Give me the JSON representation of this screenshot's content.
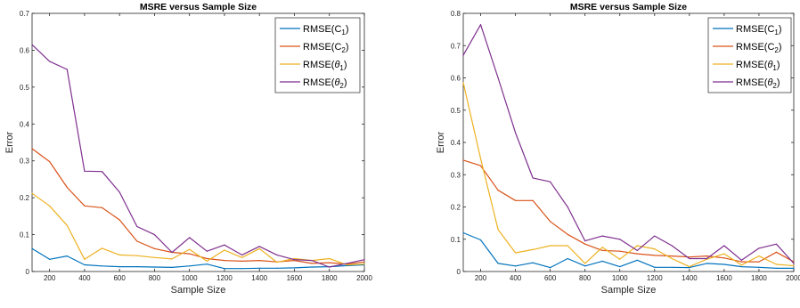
{
  "chart_data": [
    {
      "type": "line",
      "title": "MSRE versus Sample Size",
      "xlabel": "Sample Size",
      "ylabel": "Error",
      "xlim": [
        100,
        2000
      ],
      "ylim": [
        0,
        0.7
      ],
      "xticks": [
        "200",
        "400",
        "600",
        "800",
        "1000",
        "1200",
        "1400",
        "1600",
        "1800",
        "2000"
      ],
      "yticks": [
        "0",
        "0.1",
        "0.2",
        "0.3",
        "0.4",
        "0.5",
        "0.6",
        "0.7"
      ],
      "legend_position": "top-right",
      "x": [
        100,
        200,
        300,
        400,
        500,
        600,
        700,
        800,
        900,
        1000,
        1100,
        1200,
        1300,
        1400,
        1500,
        1600,
        1700,
        1800,
        1900,
        2000
      ],
      "series": [
        {
          "name": "RMSE(C1)",
          "label_base": "RMSE(C",
          "label_sub": "1",
          "label_italic": false,
          "color": "#0072BD",
          "values": [
            0.062,
            0.033,
            0.042,
            0.018,
            0.015,
            0.013,
            0.013,
            0.012,
            0.011,
            0.015,
            0.02,
            0.008,
            0.008,
            0.009,
            0.009,
            0.01,
            0.012,
            0.013,
            0.016,
            0.018
          ]
        },
        {
          "name": "RMSE(C2)",
          "label_base": "RMSE(C",
          "label_sub": "2",
          "label_italic": false,
          "color": "#D95319",
          "values": [
            0.333,
            0.298,
            0.228,
            0.178,
            0.173,
            0.14,
            0.082,
            0.062,
            0.052,
            0.048,
            0.035,
            0.03,
            0.028,
            0.03,
            0.026,
            0.03,
            0.022,
            0.024,
            0.02,
            0.026
          ]
        },
        {
          "name": "RMSE(θ1)",
          "label_base": "RMSE(",
          "label_greek": "θ",
          "label_sub": "1",
          "label_italic": true,
          "color": "#EDB120",
          "values": [
            0.212,
            0.178,
            0.125,
            0.033,
            0.063,
            0.045,
            0.043,
            0.038,
            0.034,
            0.06,
            0.028,
            0.058,
            0.038,
            0.062,
            0.025,
            0.035,
            0.03,
            0.035,
            0.018,
            0.02
          ]
        },
        {
          "name": "RMSE(θ2)",
          "label_base": "RMSE(",
          "label_greek": "θ",
          "label_sub": "2",
          "label_italic": true,
          "color": "#7E2F8E",
          "values": [
            0.615,
            0.57,
            0.548,
            0.272,
            0.271,
            0.215,
            0.122,
            0.1,
            0.052,
            0.092,
            0.055,
            0.072,
            0.045,
            0.068,
            0.045,
            0.032,
            0.03,
            0.012,
            0.022,
            0.032
          ]
        }
      ]
    },
    {
      "type": "line",
      "title": "MSRE versus Sample Size",
      "xlabel": "Sample Size",
      "ylabel": "Error",
      "xlim": [
        100,
        2000
      ],
      "ylim": [
        0,
        0.8
      ],
      "xticks": [
        "200",
        "400",
        "600",
        "800",
        "1000",
        "1200",
        "1400",
        "1600",
        "1800",
        "2000"
      ],
      "yticks": [
        "0",
        "0.1",
        "0.2",
        "0.3",
        "0.4",
        "0.5",
        "0.6",
        "0.7",
        "0.8"
      ],
      "legend_position": "top-right",
      "x": [
        100,
        200,
        300,
        400,
        500,
        600,
        700,
        800,
        900,
        1000,
        1100,
        1200,
        1300,
        1400,
        1500,
        1600,
        1700,
        1800,
        1900,
        2000
      ],
      "series": [
        {
          "name": "RMSE(C1)",
          "label_base": "RMSE(C",
          "label_sub": "1",
          "label_italic": false,
          "color": "#0072BD",
          "values": [
            0.12,
            0.098,
            0.025,
            0.017,
            0.027,
            0.012,
            0.04,
            0.017,
            0.032,
            0.015,
            0.035,
            0.013,
            0.013,
            0.012,
            0.025,
            0.022,
            0.015,
            0.013,
            0.01,
            0.01
          ]
        },
        {
          "name": "RMSE(C2)",
          "label_base": "RMSE(C",
          "label_sub": "2",
          "label_italic": false,
          "color": "#D95319",
          "values": [
            0.345,
            0.328,
            0.252,
            0.22,
            0.22,
            0.155,
            0.115,
            0.085,
            0.065,
            0.063,
            0.055,
            0.05,
            0.048,
            0.045,
            0.048,
            0.042,
            0.03,
            0.03,
            0.06,
            0.03
          ]
        },
        {
          "name": "RMSE(θ1)",
          "label_base": "RMSE(",
          "label_greek": "θ",
          "label_sub": "1",
          "label_italic": true,
          "color": "#EDB120",
          "values": [
            0.585,
            0.35,
            0.13,
            0.058,
            0.068,
            0.08,
            0.08,
            0.025,
            0.075,
            0.038,
            0.08,
            0.07,
            0.04,
            0.015,
            0.038,
            0.055,
            0.02,
            0.048,
            0.022,
            0.018
          ]
        },
        {
          "name": "RMSE(θ2)",
          "label_base": "RMSE(",
          "label_greek": "θ",
          "label_sub": "2",
          "label_italic": true,
          "color": "#7E2F8E",
          "values": [
            0.67,
            0.765,
            0.6,
            0.43,
            0.29,
            0.278,
            0.2,
            0.095,
            0.11,
            0.1,
            0.065,
            0.11,
            0.08,
            0.04,
            0.04,
            0.08,
            0.035,
            0.072,
            0.085,
            0.025
          ]
        }
      ]
    }
  ]
}
